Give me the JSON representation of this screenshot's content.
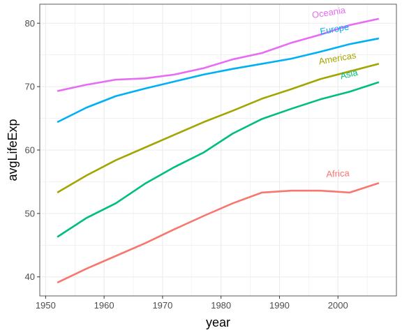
{
  "chart_data": {
    "type": "line",
    "title": "",
    "xlabel": "year",
    "ylabel": "avgLifeExp",
    "xlim": [
      1949,
      2010
    ],
    "ylim": [
      37,
      83
    ],
    "x_ticks": [
      1950,
      1960,
      1970,
      1980,
      1990,
      2000
    ],
    "y_ticks": [
      40,
      50,
      60,
      70,
      80
    ],
    "x_minor_ticks": [
      1955,
      1965,
      1975,
      1985,
      1995,
      2005
    ],
    "y_minor_ticks": [
      45,
      55,
      65,
      75
    ],
    "grid": true,
    "legend": "none (direct labels at line ends)",
    "x": [
      1952,
      1957,
      1962,
      1967,
      1972,
      1977,
      1982,
      1987,
      1992,
      1997,
      2002,
      2007
    ],
    "series": [
      {
        "name": "Africa",
        "color": "#F8766D",
        "values": [
          39.1,
          41.3,
          43.3,
          45.3,
          47.5,
          49.6,
          51.6,
          53.3,
          53.6,
          53.6,
          53.3,
          54.8
        ],
        "label_at": [
          2000,
          55.8
        ],
        "label_angle": -3
      },
      {
        "name": "Americas",
        "color": "#A3A500",
        "values": [
          53.3,
          56.0,
          58.4,
          60.4,
          62.4,
          64.4,
          66.2,
          68.1,
          69.6,
          71.2,
          72.4,
          73.6
        ],
        "label_at": [
          2000,
          74.0
        ],
        "label_angle": -10
      },
      {
        "name": "Asia",
        "color": "#00BF7D",
        "values": [
          46.3,
          49.3,
          51.6,
          54.7,
          57.3,
          59.6,
          62.6,
          64.9,
          66.5,
          68.0,
          69.2,
          70.7
        ],
        "label_at": [
          2002,
          71.5
        ],
        "label_angle": -14
      },
      {
        "name": "Europe",
        "color": "#00B0F6",
        "values": [
          64.4,
          66.7,
          68.5,
          69.7,
          70.8,
          71.9,
          72.8,
          73.6,
          74.4,
          75.5,
          76.7,
          77.6
        ],
        "label_at": [
          1999.5,
          78.6
        ],
        "label_angle": -10
      },
      {
        "name": "Oceania",
        "color": "#E76BF3",
        "values": [
          69.3,
          70.3,
          71.1,
          71.3,
          71.9,
          72.9,
          74.3,
          75.3,
          76.9,
          78.2,
          79.7,
          80.7
        ],
        "label_at": [
          1998.5,
          81.2
        ],
        "label_angle": -9
      }
    ]
  }
}
